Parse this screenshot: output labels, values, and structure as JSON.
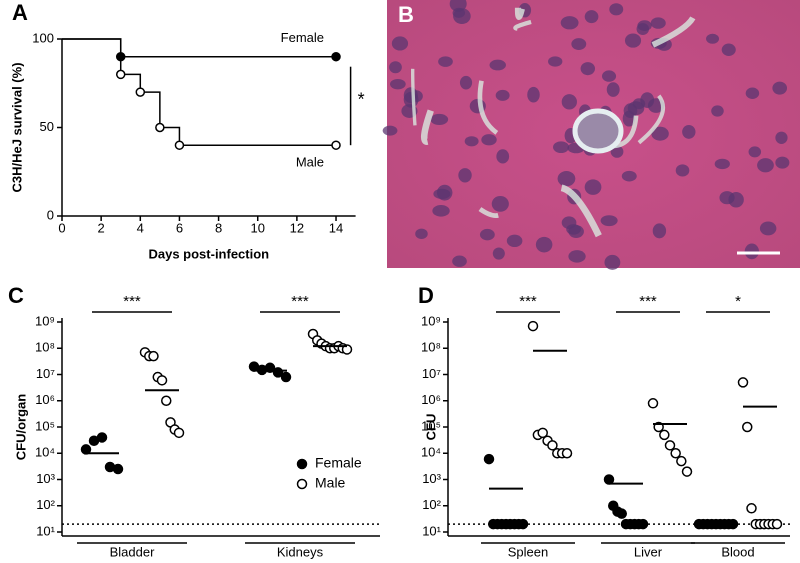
{
  "chart_data": [
    {
      "type": "step",
      "panel_label": "A",
      "xlabel": "Days post-infection",
      "ylabel": "C3H/HeJ survival  (%)",
      "xlim": [
        0,
        15
      ],
      "ylim": [
        0,
        100
      ],
      "xticks": [
        0,
        2,
        4,
        6,
        8,
        10,
        12,
        14
      ],
      "yticks": [
        0,
        50,
        100
      ],
      "annotation": "*",
      "series": [
        {
          "name": "Female",
          "color": "#000000",
          "filled": true,
          "x": [
            0,
            3,
            14
          ],
          "values": [
            100,
            90,
            90
          ]
        },
        {
          "name": "Male",
          "color": "#000000",
          "filled": false,
          "x": [
            0,
            3,
            4,
            5,
            6,
            14
          ],
          "values": [
            100,
            80,
            70,
            50,
            40,
            40
          ]
        }
      ]
    },
    {
      "type": "image",
      "panel_label": "B"
    },
    {
      "type": "dotplot",
      "panel_label": "C",
      "ylabel": "CFU/organ",
      "log_scale": true,
      "ylim": [
        10,
        1000000000
      ],
      "yticks": [
        {
          "value": 10,
          "label": "10¹"
        },
        {
          "value": 100,
          "label": "10²"
        },
        {
          "value": 1000,
          "label": "10³"
        },
        {
          "value": 10000,
          "label": "10⁴"
        },
        {
          "value": 100000,
          "label": "10⁵"
        },
        {
          "value": 1000000,
          "label": "10⁶"
        },
        {
          "value": 10000000,
          "label": "10⁷"
        },
        {
          "value": 100000000,
          "label": "10⁸"
        },
        {
          "value": 1000000000,
          "label": "10⁹"
        }
      ],
      "detection_limit": 20,
      "legend": "lower-right",
      "groups": [
        {
          "name": "Bladder",
          "significance": "***"
        },
        {
          "name": "Kidneys",
          "significance": "***"
        }
      ],
      "series": [
        {
          "name": "Female",
          "filled": true,
          "values": [
            [
              14000,
              30000,
              40000,
              3000,
              2500
            ],
            [
              20000000,
              15000000,
              18000000,
              12000000,
              8000000
            ]
          ],
          "centers": [
            10000,
            14000000
          ]
        },
        {
          "name": "Male",
          "filled": false,
          "values": [
            [
              70000000,
              50000000,
              50000000,
              8000000,
              6000000,
              1000000,
              150000,
              80000,
              60000
            ],
            [
              350000000,
              200000000,
              150000000,
              120000000,
              100000000,
              100000000,
              120000000,
              100000000,
              90000000
            ]
          ],
          "centers": [
            2500000,
            120000000
          ]
        }
      ]
    },
    {
      "type": "dotplot",
      "panel_label": "D",
      "ylabel": "CFU",
      "log_scale": true,
      "ylim": [
        10,
        1000000000
      ],
      "yticks": [
        {
          "value": 10,
          "label": "10¹"
        },
        {
          "value": 100,
          "label": "10²"
        },
        {
          "value": 1000,
          "label": "10³"
        },
        {
          "value": 10000,
          "label": "10⁴"
        },
        {
          "value": 100000,
          "label": "10⁵"
        },
        {
          "value": 1000000,
          "label": "10⁶"
        },
        {
          "value": 10000000,
          "label": "10⁷"
        },
        {
          "value": 100000000,
          "label": "10⁸"
        },
        {
          "value": 1000000000,
          "label": "10⁹"
        }
      ],
      "detection_limit": 20,
      "groups": [
        {
          "name": "Spleen",
          "significance": "***"
        },
        {
          "name": "Liver",
          "significance": "***"
        },
        {
          "name": "Blood",
          "significance": "*"
        }
      ],
      "series": [
        {
          "name": "Female",
          "filled": true,
          "values": [
            [
              6000,
              20,
              20,
              20,
              20,
              20,
              20,
              20,
              20
            ],
            [
              1000,
              100,
              60,
              50,
              20,
              20,
              20,
              20,
              20
            ],
            [
              20,
              20,
              20,
              20,
              20,
              20,
              20,
              20,
              20
            ]
          ],
          "centers": [
            450,
            700,
            20
          ]
        },
        {
          "name": "Male",
          "filled": false,
          "values": [
            [
              700000000,
              50000,
              60000,
              30000,
              20000,
              10000,
              10000,
              10000
            ],
            [
              800000,
              100000,
              50000,
              20000,
              10000,
              5000,
              2000
            ],
            [
              5000000,
              100000,
              80,
              20,
              20,
              20,
              20,
              20,
              20
            ]
          ],
          "centers": [
            80000000,
            130000,
            600000
          ]
        }
      ]
    }
  ]
}
